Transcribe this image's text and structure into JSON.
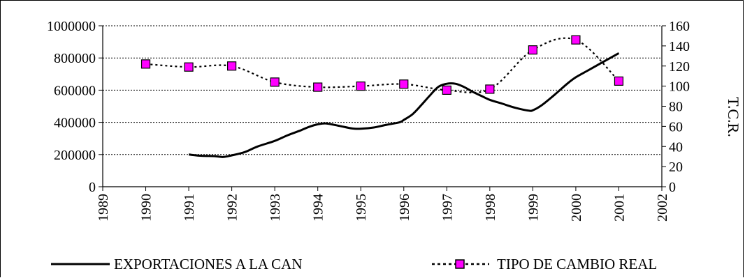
{
  "chart_data": {
    "type": "line",
    "title": "",
    "xlabel": "",
    "ylabel": "",
    "y2label": "T.C.R.",
    "x_ticks": [
      "1989",
      "1990",
      "1991",
      "1992",
      "1993",
      "1994",
      "1995",
      "1996",
      "1997",
      "1998",
      "1999",
      "2000",
      "2001",
      "2002"
    ],
    "xlim": [
      1989,
      2002
    ],
    "ylim": [
      0,
      1000000
    ],
    "y_ticks": [
      "0",
      "200000",
      "400000",
      "600000",
      "800000",
      "1000000"
    ],
    "y2lim": [
      0,
      160
    ],
    "y2_ticks": [
      "0",
      "20",
      "40",
      "60",
      "80",
      "100",
      "120",
      "140",
      "160"
    ],
    "grid": "horizontal dotted",
    "legend_placement": "bottom",
    "series": [
      {
        "name": "EXPORTACIONES A LA CAN",
        "axis": "left",
        "style": "solid",
        "color": "#000000",
        "x": [
          1991,
          1991.3,
          1991.6,
          1991.8,
          1992,
          1992.3,
          1992.6,
          1993,
          1993.3,
          1993.6,
          1993.8,
          1994,
          1994.2,
          1994.5,
          1994.8,
          1995,
          1995.3,
          1995.6,
          1995.9,
          1996,
          1996.2,
          1996.4,
          1996.6,
          1996.8,
          1997,
          1997.2,
          1997.4,
          1997.6,
          1997.8,
          1998,
          1998.3,
          1998.6,
          1998.9,
          1999,
          1999.2,
          1999.5,
          1999.8,
          2000,
          2000.3,
          2000.6,
          2001
        ],
        "values": [
          200000,
          192000,
          190000,
          185000,
          195000,
          215000,
          250000,
          285000,
          320000,
          350000,
          372000,
          388000,
          393000,
          378000,
          362000,
          360000,
          368000,
          385000,
          400000,
          415000,
          450000,
          505000,
          565000,
          620000,
          640000,
          640000,
          620000,
          590000,
          565000,
          540000,
          515000,
          490000,
          473000,
          475000,
          505000,
          570000,
          640000,
          680000,
          725000,
          770000,
          830000
        ]
      },
      {
        "name": "TIPO DE CAMBIO REAL",
        "axis": "right",
        "style": "dotted",
        "marker": "square",
        "marker_color": "#ff00ff",
        "x": [
          1990,
          1991,
          1992,
          1993,
          1994,
          1995,
          1996,
          1997,
          1998,
          1999,
          2000,
          2001
        ],
        "values": [
          122,
          119,
          120,
          104,
          99,
          100,
          102,
          96,
          97,
          136,
          146,
          105
        ]
      }
    ]
  },
  "colors": {
    "line": "#000000",
    "marker": "#ff00ff",
    "grid": "#000000"
  }
}
